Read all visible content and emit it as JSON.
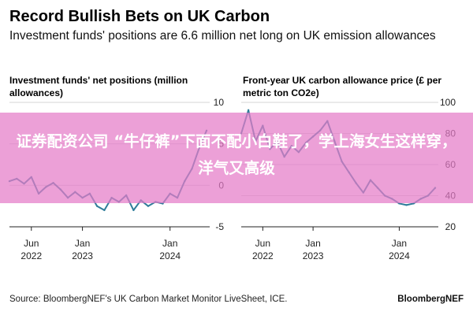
{
  "header": {
    "title": "Record Bullish Bets on UK Carbon",
    "subtitle": "Investment funds' positions are 6.6 million net long on UK emission allowances"
  },
  "chart_data": [
    {
      "type": "line",
      "title": "Investment funds' net positions (million allowances)",
      "y_ticks": [
        "10",
        "5",
        "0",
        "-5"
      ],
      "ylim": [
        -5,
        10
      ],
      "x_ticks": [
        {
          "label1": "Jun",
          "label2": "2022",
          "x": "2022-06"
        },
        {
          "label1": "Jan",
          "label2": "2023",
          "x": "2023-01"
        },
        {
          "label1": "Jan",
          "label2": "2024",
          "x": "2024-01"
        }
      ],
      "series": [
        {
          "color": "#2f7d9a",
          "x": [
            "2022-03",
            "2022-04",
            "2022-05",
            "2022-06",
            "2022-07",
            "2022-08",
            "2022-09",
            "2022-10",
            "2022-11",
            "2022-12",
            "2023-01",
            "2023-02",
            "2023-03",
            "2023-04",
            "2023-05",
            "2023-06",
            "2023-07",
            "2023-08",
            "2023-09",
            "2023-10",
            "2023-11",
            "2023-12",
            "2024-01",
            "2024-02",
            "2024-03",
            "2024-04",
            "2024-05",
            "2024-06"
          ],
          "values": [
            0.5,
            0.8,
            0.2,
            1.0,
            -1.0,
            -0.2,
            0.3,
            -0.5,
            -1.5,
            -0.8,
            -1.5,
            -1.0,
            -2.5,
            -3.0,
            -1.5,
            -2.0,
            -1.2,
            -3.0,
            -1.8,
            -2.5,
            -2.0,
            -2.2,
            -1.0,
            -1.5,
            0.5,
            2.0,
            4.5,
            6.6
          ]
        }
      ]
    },
    {
      "type": "line",
      "title": "Front-year UK carbon allowance price (£ per metric ton CO2e)",
      "y_ticks": [
        "100",
        "80",
        "60",
        "40",
        "20"
      ],
      "ylim": [
        20,
        100
      ],
      "x_ticks": [
        {
          "label1": "Jun",
          "label2": "2022",
          "x": "2022-06"
        },
        {
          "label1": "Jan",
          "label2": "2023",
          "x": "2023-01"
        },
        {
          "label1": "Jan",
          "label2": "2024",
          "x": "2024-01"
        }
      ],
      "series": [
        {
          "color": "#2f7d9a",
          "x": [
            "2022-03",
            "2022-04",
            "2022-05",
            "2022-06",
            "2022-07",
            "2022-08",
            "2022-09",
            "2022-10",
            "2022-11",
            "2022-12",
            "2023-01",
            "2023-02",
            "2023-03",
            "2023-04",
            "2023-05",
            "2023-06",
            "2023-07",
            "2023-08",
            "2023-09",
            "2023-10",
            "2023-11",
            "2023-12",
            "2024-01",
            "2024-02",
            "2024-03",
            "2024-04",
            "2024-05",
            "2024-06"
          ],
          "values": [
            80,
            95,
            75,
            85,
            70,
            75,
            65,
            72,
            68,
            74,
            78,
            82,
            88,
            75,
            62,
            55,
            48,
            42,
            50,
            45,
            40,
            38,
            35,
            34,
            35,
            38,
            40,
            45
          ]
        }
      ]
    }
  ],
  "overlay": {
    "text": "证券配资公司 “牛仔裤”下面不配小白鞋了，学上海女生这样穿，洋气又高级"
  },
  "footer": {
    "source": "Source: BloombergNEF's UK Carbon Market Monitor LiveSheet, ICE.",
    "brand": "BloombergNEF"
  }
}
